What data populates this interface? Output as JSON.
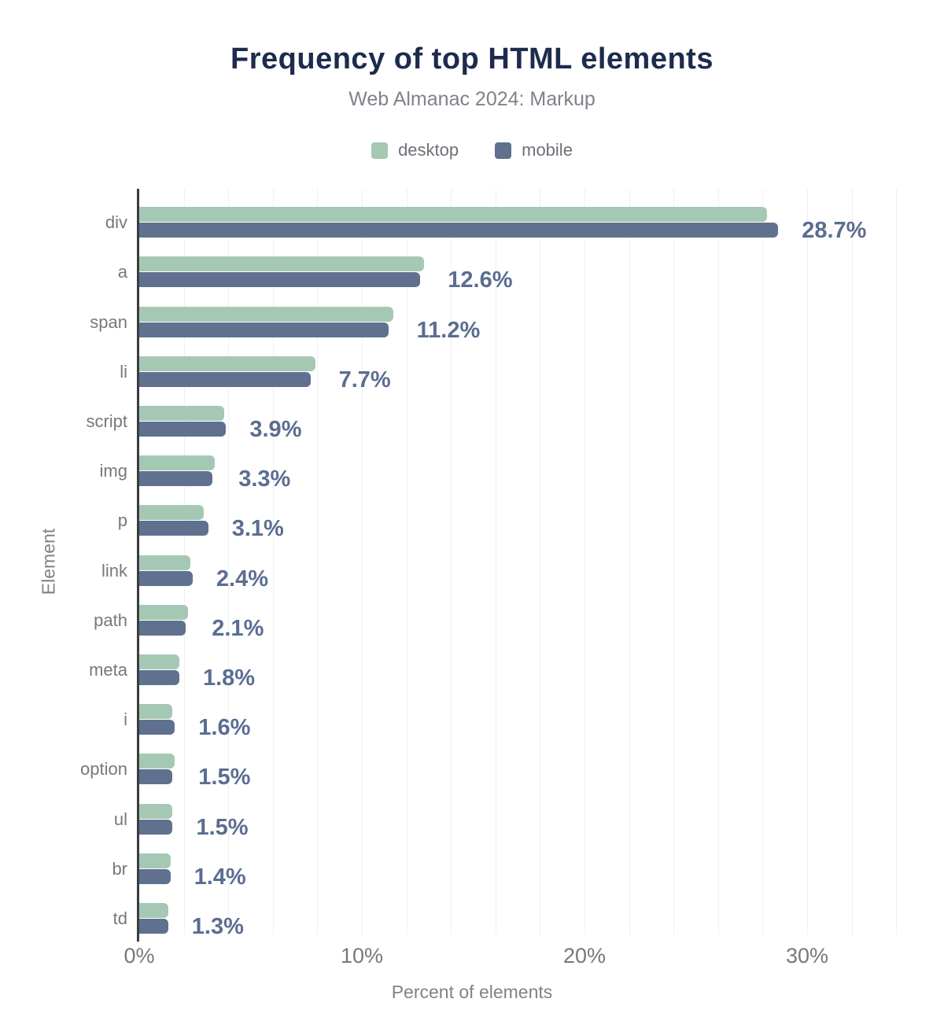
{
  "title": "Frequency of top HTML elements",
  "subtitle": "Web Almanac 2024: Markup",
  "legend": [
    {
      "label": "desktop",
      "color": "#a5c8b5"
    },
    {
      "label": "mobile",
      "color": "#5f718e"
    }
  ],
  "chart_data": {
    "type": "bar",
    "orientation": "horizontal",
    "title": "Frequency of top HTML elements",
    "subtitle": "Web Almanac 2024: Markup",
    "xlabel": "Percent of elements",
    "ylabel": "Element",
    "categories": [
      "div",
      "a",
      "span",
      "li",
      "script",
      "img",
      "p",
      "link",
      "path",
      "meta",
      "i",
      "option",
      "ul",
      "br",
      "td"
    ],
    "series": [
      {
        "name": "desktop",
        "color": "#a5c8b5",
        "values": [
          28.2,
          12.8,
          11.4,
          7.9,
          3.8,
          3.4,
          2.9,
          2.3,
          2.2,
          1.8,
          1.5,
          1.6,
          1.5,
          1.4,
          1.3
        ]
      },
      {
        "name": "mobile",
        "color": "#5f718e",
        "values": [
          28.7,
          12.6,
          11.2,
          7.7,
          3.9,
          3.3,
          3.1,
          2.4,
          2.1,
          1.8,
          1.6,
          1.5,
          1.5,
          1.4,
          1.3
        ]
      }
    ],
    "data_labels": [
      "28.7%",
      "12.6%",
      "11.2%",
      "7.7%",
      "3.9%",
      "3.3%",
      "3.1%",
      "2.4%",
      "2.1%",
      "1.8%",
      "1.6%",
      "1.5%",
      "1.5%",
      "1.4%",
      "1.3%"
    ],
    "x_ticks": [
      {
        "value": 0,
        "label": "0%"
      },
      {
        "value": 10,
        "label": "10%"
      },
      {
        "value": 20,
        "label": "20%"
      },
      {
        "value": 30,
        "label": "30%"
      }
    ],
    "xlim": [
      0,
      35.44
    ],
    "minor_grid_step": 2,
    "grid": true,
    "legend_position": "top",
    "value_label_color": "#5b6d90",
    "axis_text_color": "#75787d"
  }
}
